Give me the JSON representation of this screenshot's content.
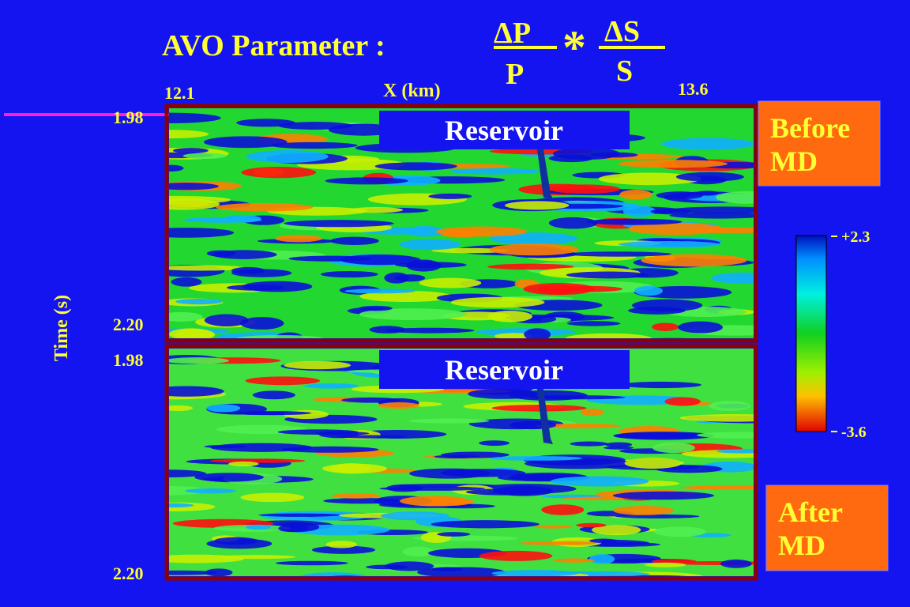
{
  "title": "AVO Parameter :",
  "formula": {
    "dp": "ΔP",
    "p": "P",
    "times": "*",
    "ds": "ΔS",
    "s": "S"
  },
  "x_axis": {
    "label": "X (km)",
    "start": "12.1",
    "end": "13.6"
  },
  "y_axis": {
    "label": "Time (s)"
  },
  "panels": [
    {
      "top": "1.98",
      "bottom": "2.20",
      "annotation": "Reservoir",
      "caption": "Before MD"
    },
    {
      "top": "1.98",
      "bottom": "2.20",
      "annotation": "Reservoir",
      "caption": "After MD"
    }
  ],
  "colorbar": {
    "max": "+2.3",
    "min": "-3.6"
  }
}
